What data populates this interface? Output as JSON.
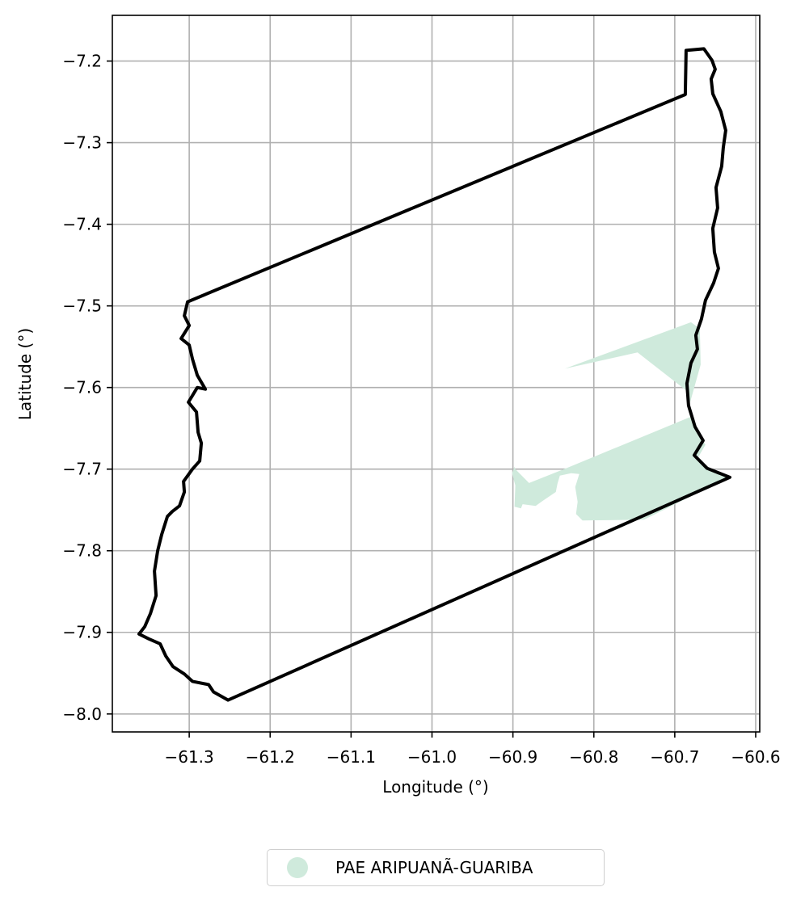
{
  "chart_data": {
    "type": "map",
    "xlabel": "Longitude (°)",
    "ylabel": "Latitude (°)",
    "xlim": [
      -61.395,
      -60.595
    ],
    "ylim": [
      -8.022,
      -7.144
    ],
    "x_ticks": [
      "−61.3",
      "−61.2",
      "−61.1",
      "−61.0",
      "−60.9",
      "−60.8",
      "−60.7",
      "−60.6"
    ],
    "x_tick_values": [
      -61.3,
      -61.2,
      -61.1,
      -61.0,
      -60.9,
      -60.8,
      -60.7,
      -60.6
    ],
    "y_ticks": [
      "−7.2",
      "−7.3",
      "−7.4",
      "−7.5",
      "−7.6",
      "−7.7",
      "−7.8",
      "−7.9",
      "−8.0"
    ],
    "y_tick_values": [
      -7.2,
      -7.3,
      -7.4,
      -7.5,
      -7.6,
      -7.7,
      -7.8,
      -7.9,
      -8.0
    ],
    "grid": true,
    "boundary": {
      "color": "#000000",
      "coords": [
        [
          -61.302,
          -7.495
        ],
        [
          -60.687,
          -7.241
        ],
        [
          -60.686,
          -7.187
        ],
        [
          -60.664,
          -7.185
        ],
        [
          -60.654,
          -7.199
        ],
        [
          -60.65,
          -7.21
        ],
        [
          -60.655,
          -7.222
        ],
        [
          -60.653,
          -7.24
        ],
        [
          -60.643,
          -7.262
        ],
        [
          -60.637,
          -7.285
        ],
        [
          -60.64,
          -7.306
        ],
        [
          -60.642,
          -7.329
        ],
        [
          -60.649,
          -7.355
        ],
        [
          -60.647,
          -7.38
        ],
        [
          -60.653,
          -7.405
        ],
        [
          -60.651,
          -7.434
        ],
        [
          -60.646,
          -7.454
        ],
        [
          -60.652,
          -7.472
        ],
        [
          -60.662,
          -7.493
        ],
        [
          -60.667,
          -7.516
        ],
        [
          -60.674,
          -7.536
        ],
        [
          -60.672,
          -7.553
        ],
        [
          -60.68,
          -7.57
        ],
        [
          -60.685,
          -7.595
        ],
        [
          -60.683,
          -7.622
        ],
        [
          -60.675,
          -7.648
        ],
        [
          -60.665,
          -7.665
        ],
        [
          -60.676,
          -7.683
        ],
        [
          -60.66,
          -7.699
        ],
        [
          -60.632,
          -7.71
        ],
        [
          -61.252,
          -7.983
        ],
        [
          -61.27,
          -7.973
        ],
        [
          -61.276,
          -7.964
        ],
        [
          -61.296,
          -7.96
        ],
        [
          -61.306,
          -7.951
        ],
        [
          -61.32,
          -7.942
        ],
        [
          -61.329,
          -7.929
        ],
        [
          -61.336,
          -7.914
        ],
        [
          -61.35,
          -7.908
        ],
        [
          -61.362,
          -7.902
        ],
        [
          -61.355,
          -7.893
        ],
        [
          -61.348,
          -7.877
        ],
        [
          -61.341,
          -7.855
        ],
        [
          -61.343,
          -7.825
        ],
        [
          -61.339,
          -7.8
        ],
        [
          -61.334,
          -7.78
        ],
        [
          -61.327,
          -7.758
        ],
        [
          -61.321,
          -7.752
        ],
        [
          -61.312,
          -7.745
        ],
        [
          -61.306,
          -7.728
        ],
        [
          -61.307,
          -7.715
        ],
        [
          -61.296,
          -7.7
        ],
        [
          -61.287,
          -7.69
        ],
        [
          -61.285,
          -7.668
        ],
        [
          -61.289,
          -7.655
        ],
        [
          -61.291,
          -7.63
        ],
        [
          -61.301,
          -7.618
        ],
        [
          -61.29,
          -7.6
        ],
        [
          -61.28,
          -7.602
        ],
        [
          -61.29,
          -7.585
        ],
        [
          -61.296,
          -7.565
        ],
        [
          -61.3,
          -7.548
        ],
        [
          -61.31,
          -7.54
        ],
        [
          -61.3,
          -7.524
        ],
        [
          -61.306,
          -7.512
        ],
        [
          -61.302,
          -7.495
        ]
      ]
    },
    "series": [
      {
        "name": "PAE ARIPUANÃ-GUARIBA",
        "color": "#cfeadc",
        "polygons": [
          [
            [
              -60.836,
              -7.577
            ],
            [
              -60.68,
              -7.52
            ],
            [
              -60.669,
              -7.528
            ],
            [
              -60.668,
              -7.572
            ],
            [
              -60.681,
              -7.618
            ],
            [
              -60.684,
              -7.605
            ],
            [
              -60.746,
              -7.557
            ]
          ],
          [
            [
              -60.897,
              -7.7
            ],
            [
              -60.88,
              -7.717
            ],
            [
              -60.832,
              -7.698
            ],
            [
              -60.678,
              -7.635
            ],
            [
              -60.674,
              -7.654
            ],
            [
              -60.662,
              -7.67
            ],
            [
              -60.672,
              -7.687
            ],
            [
              -60.66,
              -7.699
            ],
            [
              -60.633,
              -7.71
            ],
            [
              -60.738,
              -7.762
            ],
            [
              -60.814,
              -7.763
            ],
            [
              -60.822,
              -7.755
            ],
            [
              -60.82,
              -7.74
            ],
            [
              -60.823,
              -7.722
            ],
            [
              -60.818,
              -7.706
            ],
            [
              -60.828,
              -7.705
            ],
            [
              -60.842,
              -7.708
            ],
            [
              -60.845,
              -7.718
            ],
            [
              -60.847,
              -7.728
            ],
            [
              -60.862,
              -7.738
            ],
            [
              -60.872,
              -7.745
            ],
            [
              -60.888,
              -7.743
            ],
            [
              -60.89,
              -7.748
            ],
            [
              -60.898,
              -7.746
            ],
            [
              -60.897,
              -7.72
            ],
            [
              -60.901,
              -7.705
            ],
            [
              -60.898,
              -7.697
            ]
          ]
        ]
      }
    ],
    "legend_position": "bottom-center"
  }
}
